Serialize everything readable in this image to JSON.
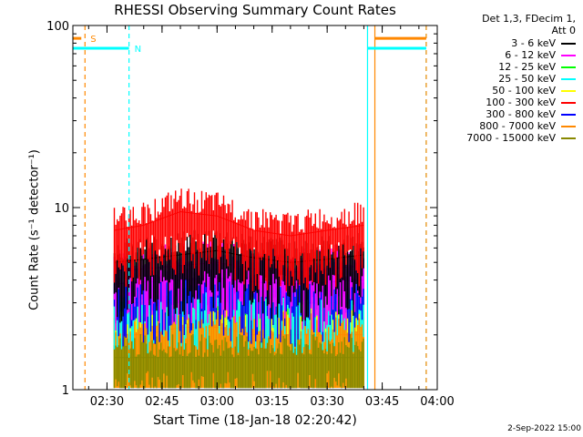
{
  "chart_data": {
    "type": "line",
    "title": "RHESSI Observing Summary Count Rates",
    "xlabel": "Start Time (18-Jan-18 02:20:42)",
    "ylabel": "Count Rate (s⁻¹ detector⁻¹)",
    "yscale": "log",
    "ylim": [
      1,
      100
    ],
    "xlim": [
      "02:20:42",
      "04:00:00"
    ],
    "xticks": [
      "02:30",
      "02:45",
      "03:00",
      "03:15",
      "03:30",
      "03:45",
      "04:00"
    ],
    "yticks": [
      "1",
      "10",
      "100"
    ],
    "legend_header": [
      "Det 1,3, FDecim 1,",
      "Att 0"
    ],
    "legend_placement": "right",
    "series": [
      {
        "name": "3 - 6 keV",
        "color": "#000000",
        "x": [
          "02:32",
          "02:40",
          "02:50",
          "03:00",
          "03:10",
          "03:20",
          "03:30",
          "03:40"
        ],
        "y": [
          5.0,
          5.2,
          5.5,
          5.8,
          5.3,
          5.0,
          5.2,
          5.5
        ]
      },
      {
        "name": "6 - 12 keV",
        "color": "#ff00ff",
        "x": [
          "02:32",
          "02:40",
          "02:50",
          "03:00",
          "03:10",
          "03:20",
          "03:30",
          "03:40"
        ],
        "y": [
          4.5,
          4.6,
          4.8,
          5.0,
          4.6,
          4.4,
          4.6,
          4.8
        ]
      },
      {
        "name": "12 - 25 keV",
        "color": "#00ff00",
        "x": [
          "02:32",
          "02:40",
          "02:50",
          "03:00",
          "03:10",
          "03:20",
          "03:30",
          "03:40"
        ],
        "y": [
          3.0,
          3.0,
          3.0,
          3.0,
          3.0,
          3.0,
          3.0,
          3.0
        ]
      },
      {
        "name": "25 - 50 keV",
        "color": "#00ffff",
        "x": [
          "02:32",
          "02:40",
          "02:50",
          "03:00",
          "03:10",
          "03:20",
          "03:30",
          "03:40"
        ],
        "y": [
          3.5,
          3.5,
          3.6,
          3.6,
          3.5,
          3.4,
          3.5,
          3.5
        ]
      },
      {
        "name": "50 - 100 keV",
        "color": "#ffff00",
        "x": [
          "02:32",
          "02:40",
          "02:50",
          "03:00",
          "03:10",
          "03:20",
          "03:30",
          "03:40"
        ],
        "y": [
          2.5,
          2.5,
          2.6,
          2.6,
          2.5,
          2.5,
          2.5,
          2.5
        ]
      },
      {
        "name": "100 - 300 keV",
        "color": "#ff0000",
        "x": [
          "02:32",
          "02:40",
          "02:50",
          "03:00",
          "03:10",
          "03:20",
          "03:30",
          "03:40"
        ],
        "y": [
          7.5,
          8.0,
          9.5,
          9.0,
          7.5,
          7.0,
          7.5,
          8.0
        ]
      },
      {
        "name": "300 - 800 keV",
        "color": "#0000ff",
        "x": [
          "02:32",
          "02:40",
          "02:50",
          "03:00",
          "03:10",
          "03:20",
          "03:30",
          "03:40"
        ],
        "y": [
          3.8,
          3.9,
          4.0,
          4.1,
          3.9,
          3.8,
          3.9,
          4.0
        ]
      },
      {
        "name": "800 - 7000 keV",
        "color": "#ff8800",
        "x": [
          "02:32",
          "02:40",
          "02:50",
          "03:00",
          "03:10",
          "03:20",
          "03:30",
          "03:40"
        ],
        "y": [
          2.0,
          2.0,
          2.2,
          2.2,
          2.0,
          2.0,
          2.0,
          2.0
        ]
      },
      {
        "name": "7000 - 15000 keV",
        "color": "#888800",
        "x": [
          "02:32",
          "02:40",
          "02:50",
          "03:00",
          "03:10",
          "03:20",
          "03:30",
          "03:40"
        ],
        "y": [
          1.5,
          1.5,
          1.5,
          1.5,
          1.5,
          1.5,
          1.5,
          1.5
        ]
      }
    ],
    "annotations": [
      {
        "text": "S",
        "color": "#ff8800",
        "x": "02:24"
      },
      {
        "text": "N",
        "color": "#00ffff",
        "x": "02:36"
      }
    ],
    "flag_segments": [
      {
        "color": "#00ffff",
        "y": 75,
        "from": "02:20:42",
        "to": "02:36"
      },
      {
        "color": "#00ffff",
        "y": 75,
        "from": "03:41",
        "to": "03:57"
      },
      {
        "color": "#ff8800",
        "y": 85,
        "from": "02:20:42",
        "to": "02:23"
      },
      {
        "color": "#ff8800",
        "y": 85,
        "from": "03:43",
        "to": "03:57"
      }
    ],
    "vlines": [
      {
        "color": "#ff8800",
        "x": "02:24",
        "style": "dashed"
      },
      {
        "color": "#00ffff",
        "x": "02:36",
        "style": "dashed"
      },
      {
        "color": "#00ffff",
        "x": "03:41",
        "style": "solid"
      },
      {
        "color": "#ff8800",
        "x": "03:43",
        "style": "solid"
      },
      {
        "color": "#00ffff",
        "x": "03:57",
        "style": "dashed"
      },
      {
        "color": "#ff8800",
        "x": "03:57",
        "style": "dashed"
      }
    ]
  },
  "footer": {
    "date_stamp": "2-Sep-2022 15:00"
  }
}
